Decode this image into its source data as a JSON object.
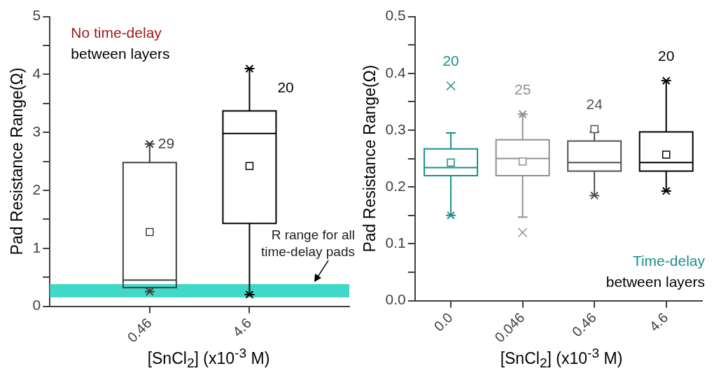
{
  "chart_data": [
    {
      "type": "box",
      "xlabel": "[SnCl$_{2}$] (x10$^{-3}$ M)",
      "ylabel": "Pad Resistance Range(Ω)",
      "categories": [
        "0.46",
        "4.6"
      ],
      "colors": [
        "#404040",
        "#000000"
      ],
      "boxes": [
        {
          "low": 0.25,
          "q1": 0.32,
          "median": 0.45,
          "q3": 2.48,
          "high": 2.8,
          "mean": 1.28
        },
        {
          "low": 0.2,
          "q1": 1.43,
          "median": 2.98,
          "q3": 3.37,
          "high": 4.1,
          "mean": 2.42
        }
      ],
      "ylim": [
        0,
        5
      ],
      "yticks": [
        0,
        {
          "value": 0.5,
          "label": null
        },
        1,
        {
          "value": 1.5,
          "label": null
        },
        2,
        {
          "value": 2.5,
          "label": null
        },
        3,
        {
          "value": 3.5,
          "label": null
        },
        4,
        {
          "value": 4.5,
          "label": null
        },
        5
      ],
      "bands": [
        {
          "axis": "y",
          "from": 0.15,
          "to": 0.38,
          "label": "R range for all time-delay pads",
          "color": "#40d8c8"
        }
      ],
      "series": [
        {
          "type": "scatter",
          "marker": "cross",
          "x": [
            "0.46",
            "0.46",
            "4.6",
            "4.6"
          ],
          "values": [
            2.8,
            0.25,
            4.1,
            0.2
          ],
          "colors": [
            "#404040",
            "#404040",
            "#000000",
            "#000000"
          ]
        }
      ],
      "annotations": [
        "No time-delay",
        "between layers",
        "29",
        "20"
      ]
    },
    {
      "type": "box",
      "xlabel": "[SnCl$_{2}$] (x10$^{-3}$ M)",
      "ylabel": "Pad Resistance Range(Ω)",
      "categories": [
        "0.0",
        "0.046",
        "0.46",
        "4.6"
      ],
      "colors": [
        "#1a8f8a",
        "#909090",
        "#505050",
        "#000000"
      ],
      "boxes": [
        {
          "low": 0.15,
          "q1": 0.22,
          "median": 0.234,
          "q3": 0.267,
          "high": 0.295,
          "mean": 0.243,
          "outliers": [
            0.378
          ]
        },
        {
          "low": 0.147,
          "q1": 0.22,
          "median": 0.25,
          "q3": 0.283,
          "high": 0.328,
          "mean": 0.245,
          "outliers": [
            0.12
          ]
        },
        {
          "low": 0.185,
          "q1": 0.228,
          "median": 0.243,
          "q3": 0.281,
          "high": 0.297,
          "mean": 0.302
        },
        {
          "low": 0.193,
          "q1": 0.228,
          "median": 0.243,
          "q3": 0.297,
          "high": 0.387,
          "mean": 0.257
        }
      ],
      "ylim": [
        0,
        0.5
      ],
      "yticks": [
        {
          "value": 0,
          "label": "0.0"
        },
        {
          "value": 0.05,
          "label": null
        },
        0.1,
        {
          "value": 0.15,
          "label": null
        },
        0.2,
        {
          "value": 0.25,
          "label": null
        },
        0.3,
        {
          "value": 0.35,
          "label": null
        },
        0.4,
        {
          "value": 0.45,
          "label": null
        },
        0.5
      ],
      "series": [
        {
          "type": "scatter",
          "marker": "cross",
          "x": [
            "0.0",
            "0.046",
            "0.46",
            "4.6",
            "4.6"
          ],
          "values": [
            0.15,
            0.328,
            0.185,
            0.387,
            0.193
          ],
          "colors": [
            "#1a8f8a",
            "#909090",
            "#505050",
            "#000000",
            "#000000"
          ]
        }
      ],
      "annotations": [
        "Time-delay",
        "between layers",
        "20",
        "25",
        "24",
        "20"
      ]
    }
  ]
}
